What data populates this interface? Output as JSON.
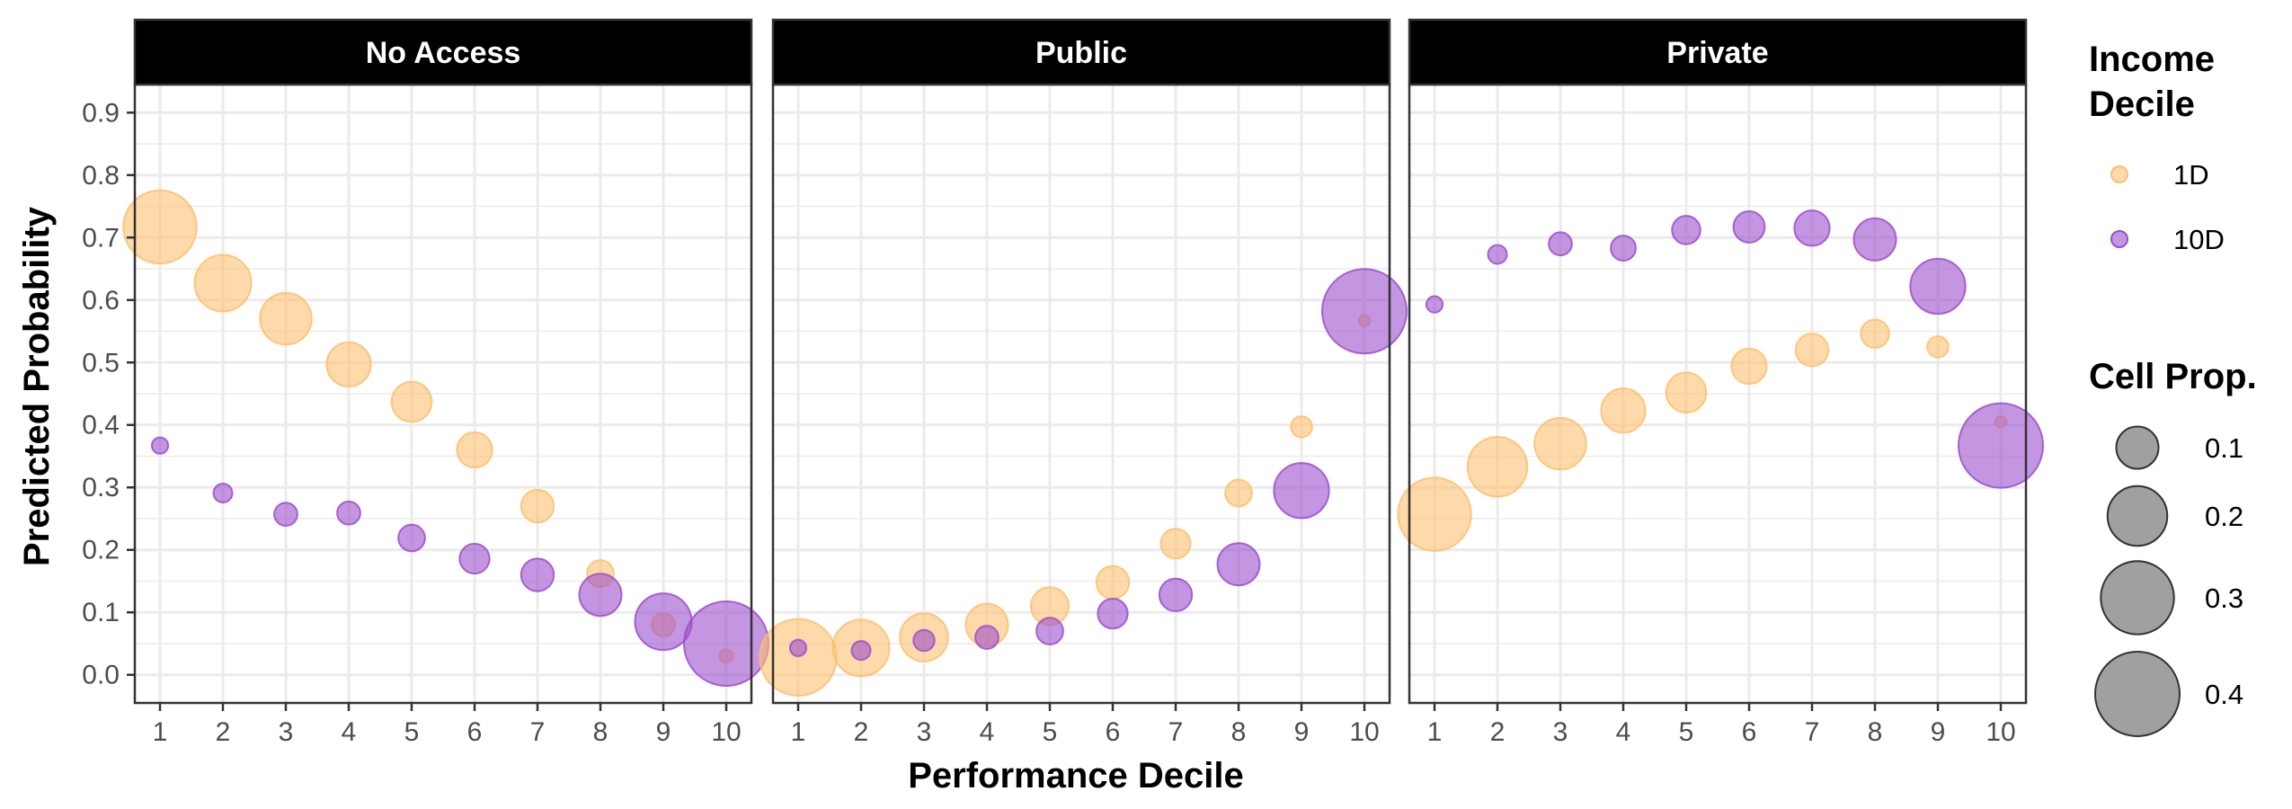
{
  "chart_data": {
    "type": "scatter",
    "xlabel": "Performance Decile",
    "ylabel": "Predicted Probability",
    "x": [
      1,
      2,
      3,
      4,
      5,
      6,
      7,
      8,
      9,
      10
    ],
    "x_tick_labels": [
      "1",
      "2",
      "3",
      "4",
      "5",
      "6",
      "7",
      "8",
      "9",
      "10"
    ],
    "xlim": [
      0.6,
      10.4
    ],
    "ylim": [
      -0.045,
      0.945
    ],
    "y_ticks": [
      0.0,
      0.1,
      0.2,
      0.3,
      0.4,
      0.5,
      0.6,
      0.7,
      0.8,
      0.9
    ],
    "y_tick_labels": [
      "0.0",
      "0.1",
      "0.2",
      "0.3",
      "0.4",
      "0.5",
      "0.6",
      "0.7",
      "0.8",
      "0.9"
    ],
    "grid": true,
    "facets": [
      {
        "label": "No Access",
        "series": [
          {
            "name": "1D",
            "y": [
              0.717,
              0.627,
              0.57,
              0.497,
              0.437,
              0.36,
              0.27,
              0.162,
              0.08,
              0.03
            ],
            "size": [
              0.3,
              0.18,
              0.15,
              0.11,
              0.09,
              0.07,
              0.06,
              0.04,
              0.03,
              0.01
            ]
          },
          {
            "name": "10D",
            "y": [
              0.367,
              0.291,
              0.257,
              0.259,
              0.219,
              0.186,
              0.16,
              0.128,
              0.085,
              0.05
            ],
            "size": [
              0.015,
              0.02,
              0.03,
              0.03,
              0.04,
              0.05,
              0.06,
              0.1,
              0.18,
              0.4
            ]
          }
        ]
      },
      {
        "label": "Public",
        "series": [
          {
            "name": "1D",
            "y": [
              0.028,
              0.043,
              0.06,
              0.08,
              0.11,
              0.148,
              0.21,
              0.291,
              0.397,
              0.567
            ],
            "size": [
              0.33,
              0.18,
              0.13,
              0.1,
              0.08,
              0.06,
              0.05,
              0.04,
              0.025,
              0.007
            ]
          },
          {
            "name": "10D",
            "y": [
              0.043,
              0.039,
              0.055,
              0.06,
              0.07,
              0.098,
              0.128,
              0.177,
              0.295,
              0.582
            ],
            "size": [
              0.015,
              0.02,
              0.025,
              0.03,
              0.04,
              0.05,
              0.06,
              0.1,
              0.17,
              0.4
            ]
          }
        ]
      },
      {
        "label": "Private",
        "series": [
          {
            "name": "1D",
            "y": [
              0.257,
              0.333,
              0.37,
              0.423,
              0.452,
              0.494,
              0.52,
              0.546,
              0.525,
              0.405
            ],
            "size": [
              0.3,
              0.2,
              0.15,
              0.11,
              0.09,
              0.07,
              0.06,
              0.045,
              0.025,
              0.007
            ]
          },
          {
            "name": "10D",
            "y": [
              0.593,
              0.673,
              0.69,
              0.683,
              0.712,
              0.717,
              0.715,
              0.697,
              0.622,
              0.367
            ],
            "size": [
              0.015,
              0.02,
              0.03,
              0.035,
              0.045,
              0.055,
              0.07,
              0.1,
              0.17,
              0.4
            ]
          }
        ]
      }
    ],
    "legend": {
      "placement": "right",
      "color_title_lines": [
        "Income",
        "Decile"
      ],
      "color_entries": [
        {
          "label": "1D",
          "color": "#FDBF6F"
        },
        {
          "label": "10D",
          "color": "#9C4ECC"
        }
      ],
      "size_title": "Cell Prop.",
      "size_entries": [
        {
          "label": "0.1",
          "value": 0.1
        },
        {
          "label": "0.2",
          "value": 0.2
        },
        {
          "label": "0.3",
          "value": 0.3
        },
        {
          "label": "0.4",
          "value": 0.4
        }
      ]
    },
    "colors": {
      "1D": "#FDBF6F",
      "10D": "#9C4ECC",
      "strip_background": "#000000",
      "panel_border": "#333333",
      "grid": "#ebebeb",
      "size_key_fill": "#777777"
    }
  }
}
